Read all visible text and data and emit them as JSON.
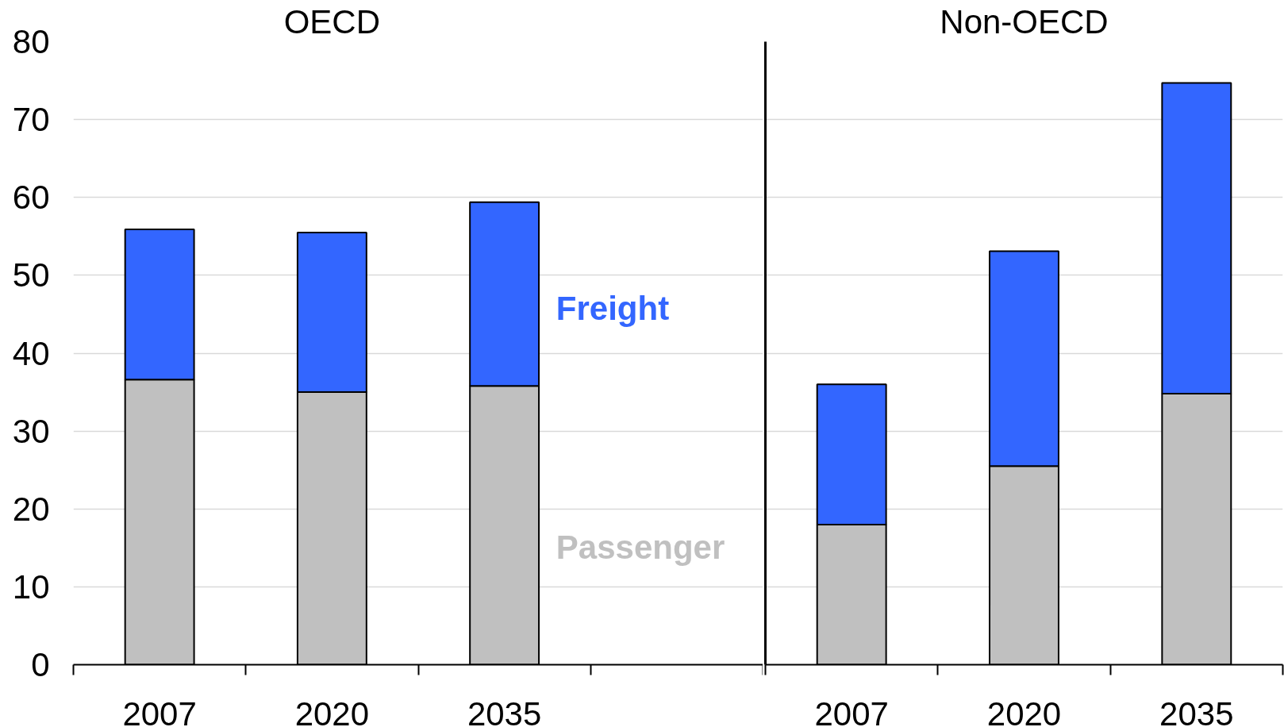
{
  "chart_data": [
    {
      "type": "bar",
      "stacked": true,
      "title": "OECD",
      "categories": [
        "2007",
        "2020",
        "2035",
        null
      ],
      "series": [
        {
          "name": "Passenger",
          "color": "#c0c0c0",
          "values": [
            36.6,
            35.0,
            35.8,
            null
          ]
        },
        {
          "name": "Freight",
          "color": "#3366ff",
          "values": [
            19.3,
            20.5,
            23.6,
            null
          ]
        }
      ],
      "ylim": [
        0,
        80
      ],
      "yticks": [
        0,
        10,
        20,
        30,
        40,
        50,
        60,
        70,
        80
      ],
      "grid": "y"
    },
    {
      "type": "bar",
      "stacked": true,
      "title": "Non-OECD",
      "categories": [
        "2007",
        "2020",
        "2035"
      ],
      "series": [
        {
          "color": "#c0c0c0",
          "values": [
            18.0,
            25.5,
            34.8
          ]
        },
        {
          "color": "#3366ff",
          "values": [
            18.0,
            27.6,
            39.9
          ]
        }
      ],
      "ylim": [
        0,
        80
      ],
      "yticks": [
        0,
        10,
        20,
        30,
        40,
        50,
        60,
        70,
        80
      ],
      "grid": "y",
      "tick_labels": "x"
    }
  ]
}
